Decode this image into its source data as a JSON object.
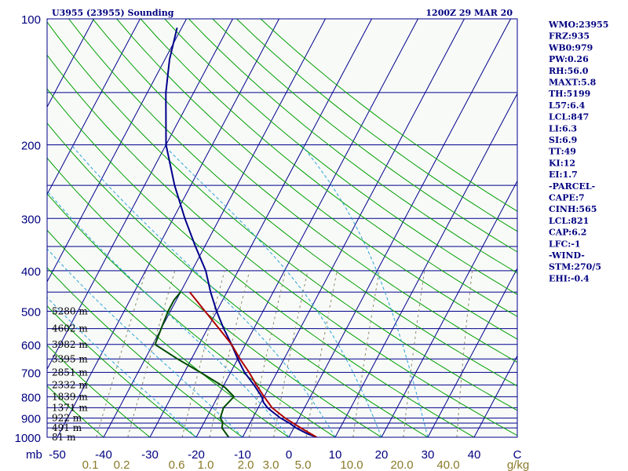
{
  "header": {
    "station": "U3955 (23955) Sounding",
    "time": "1200Z 29 MAR 20"
  },
  "indices": [
    "WMO:23955",
    "FRZ:935",
    "WB0:979",
    "PW:0.26",
    "RH:56.0",
    "MAXT:5.8",
    "TH:5199",
    "L57:6.4",
    "LCL:847",
    "LI:6.3",
    "SI:6.9",
    "TT:49",
    "KI:12",
    "EI:1.7",
    "-PARCEL-",
    "CAPE:7",
    "CINH:565",
    "LCL:821",
    "CAP:6.2",
    "LFC:-1",
    "-WIND-",
    "STM:270/5",
    "EHI:-0.4"
  ],
  "colors": {
    "grid": "#00008b",
    "dry_adiabat": "#00a000",
    "moist_adiabat": "#29a3d6",
    "mixing_ratio": "#8b8b6b",
    "temperature": "#00008b",
    "dewpoint": "#004d00",
    "parcel": "#b00000",
    "axis_text_pressure": "#000080",
    "axis_text_mixing": "#8b7a2b",
    "background": "#f8faf8"
  },
  "chart_data": {
    "type": "skew-t",
    "title": "U3955 (23955) Sounding",
    "pressure_axis": {
      "unit": "mb",
      "range": [
        100,
        1000
      ],
      "tick_labels": [
        "100",
        "200",
        "300",
        "400",
        "500",
        "600",
        "700",
        "800",
        "900",
        "1000"
      ]
    },
    "temperature_axis": {
      "unit": "C",
      "tick_labels": [
        "-50",
        "-40",
        "-30",
        "-20",
        "-10",
        "0",
        "10",
        "20",
        "30",
        "40"
      ],
      "end_label": "C"
    },
    "mixing_ratio_axis": {
      "unit": "g/kg",
      "tick_labels": [
        "0.1",
        "0.2",
        "0.6",
        "1.0",
        "2.0",
        "3.0",
        "5.0",
        "10.0",
        "20.0",
        "40.0"
      ]
    },
    "height_labels": [
      {
        "p": 500,
        "label": "5280 m"
      },
      {
        "p": 550,
        "label": "4602 m"
      },
      {
        "p": 600,
        "label": "3982 m"
      },
      {
        "p": 650,
        "label": "3395 m"
      },
      {
        "p": 700,
        "label": "2851 m"
      },
      {
        "p": 750,
        "label": "2332 m"
      },
      {
        "p": 800,
        "label": "1839 m"
      },
      {
        "p": 850,
        "label": "1371 m"
      },
      {
        "p": 900,
        "label": "922 m"
      },
      {
        "p": 950,
        "label": "491 m"
      },
      {
        "p": 1000,
        "label": "81 m"
      }
    ],
    "series": [
      {
        "name": "Temperature",
        "points": [
          {
            "p": 1000,
            "t": 6.0
          },
          {
            "p": 980,
            "t": 3.5
          },
          {
            "p": 950,
            "t": 0.5
          },
          {
            "p": 925,
            "t": -1.5
          },
          {
            "p": 900,
            "t": -4.0
          },
          {
            "p": 875,
            "t": -6.0
          },
          {
            "p": 850,
            "t": -8.0
          },
          {
            "p": 825,
            "t": -9.5
          },
          {
            "p": 800,
            "t": -10.5
          },
          {
            "p": 750,
            "t": -13.5
          },
          {
            "p": 700,
            "t": -17.0
          },
          {
            "p": 650,
            "t": -20.0
          },
          {
            "p": 600,
            "t": -23.0
          },
          {
            "p": 550,
            "t": -26.5
          },
          {
            "p": 500,
            "t": -30.0
          },
          {
            "p": 450,
            "t": -33.5
          },
          {
            "p": 400,
            "t": -37.0
          },
          {
            "p": 350,
            "t": -42.0
          },
          {
            "p": 300,
            "t": -47.5
          },
          {
            "p": 250,
            "t": -53.5
          },
          {
            "p": 200,
            "t": -60.0
          },
          {
            "p": 150,
            "t": -66.0
          },
          {
            "p": 125,
            "t": -69.0
          },
          {
            "p": 105,
            "t": -71.0
          }
        ]
      },
      {
        "name": "Dewpoint",
        "points": [
          {
            "p": 1000,
            "t": -13.0
          },
          {
            "p": 950,
            "t": -15.5
          },
          {
            "p": 920,
            "t": -16.0
          },
          {
            "p": 900,
            "t": -17.0
          },
          {
            "p": 850,
            "t": -17.5
          },
          {
            "p": 800,
            "t": -16.5
          },
          {
            "p": 760,
            "t": -19.5
          },
          {
            "p": 700,
            "t": -26.5
          },
          {
            "p": 650,
            "t": -33.0
          },
          {
            "p": 600,
            "t": -39.5
          },
          {
            "p": 550,
            "t": -40.0
          },
          {
            "p": 500,
            "t": -40.5
          },
          {
            "p": 470,
            "t": -40.5
          },
          {
            "p": 450,
            "t": -40.0
          }
        ]
      },
      {
        "name": "Parcel",
        "points": [
          {
            "p": 1000,
            "t": 6.0
          },
          {
            "p": 950,
            "t": 1.5
          },
          {
            "p": 900,
            "t": -3.0
          },
          {
            "p": 850,
            "t": -7.0
          },
          {
            "p": 800,
            "t": -10.0
          },
          {
            "p": 750,
            "t": -13.0
          },
          {
            "p": 700,
            "t": -16.0
          },
          {
            "p": 650,
            "t": -19.5
          },
          {
            "p": 600,
            "t": -23.0
          },
          {
            "p": 550,
            "t": -27.5
          },
          {
            "p": 500,
            "t": -32.5
          },
          {
            "p": 450,
            "t": -38.0
          }
        ]
      }
    ],
    "isobars": [
      100,
      150,
      200,
      250,
      300,
      350,
      400,
      450,
      500,
      550,
      600,
      650,
      700,
      750,
      800,
      850,
      900,
      925,
      950,
      1000
    ],
    "isotherms_c": [
      -120,
      -110,
      -100,
      -90,
      -80,
      -70,
      -60,
      -50,
      -40,
      -30,
      -20,
      -10,
      0,
      10,
      20,
      30,
      40
    ],
    "dry_adiabats_c": [
      -40,
      -30,
      -20,
      -10,
      0,
      10,
      20,
      30,
      40,
      50,
      60,
      70,
      80,
      90,
      100,
      110,
      120,
      130,
      140,
      150
    ],
    "moist_adiabats_c": [
      -20,
      -10,
      0,
      10,
      20,
      30
    ],
    "mixing_ratios_gkg": [
      0.1,
      0.2,
      0.6,
      1.0,
      2.0,
      3.0,
      5.0,
      10.0,
      20.0,
      40.0
    ]
  }
}
